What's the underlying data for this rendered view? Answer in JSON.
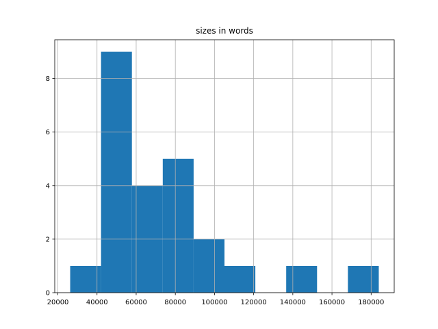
{
  "chart_data": {
    "type": "histogram",
    "title": "sizes in words",
    "bins": [
      26300,
      42060,
      57820,
      73580,
      89340,
      105100,
      120860,
      136620,
      152380,
      168140,
      183900
    ],
    "values": [
      1,
      9,
      4,
      5,
      2,
      1,
      0,
      1,
      0,
      1
    ],
    "color": "#1f77b4",
    "xlim": [
      18420,
      191780
    ],
    "xticks": [
      20000,
      40000,
      60000,
      80000,
      100000,
      120000,
      140000,
      160000,
      180000
    ],
    "ylim": [
      0,
      9.45
    ],
    "yticks": [
      0,
      2,
      4,
      6,
      8
    ],
    "grid": true
  }
}
